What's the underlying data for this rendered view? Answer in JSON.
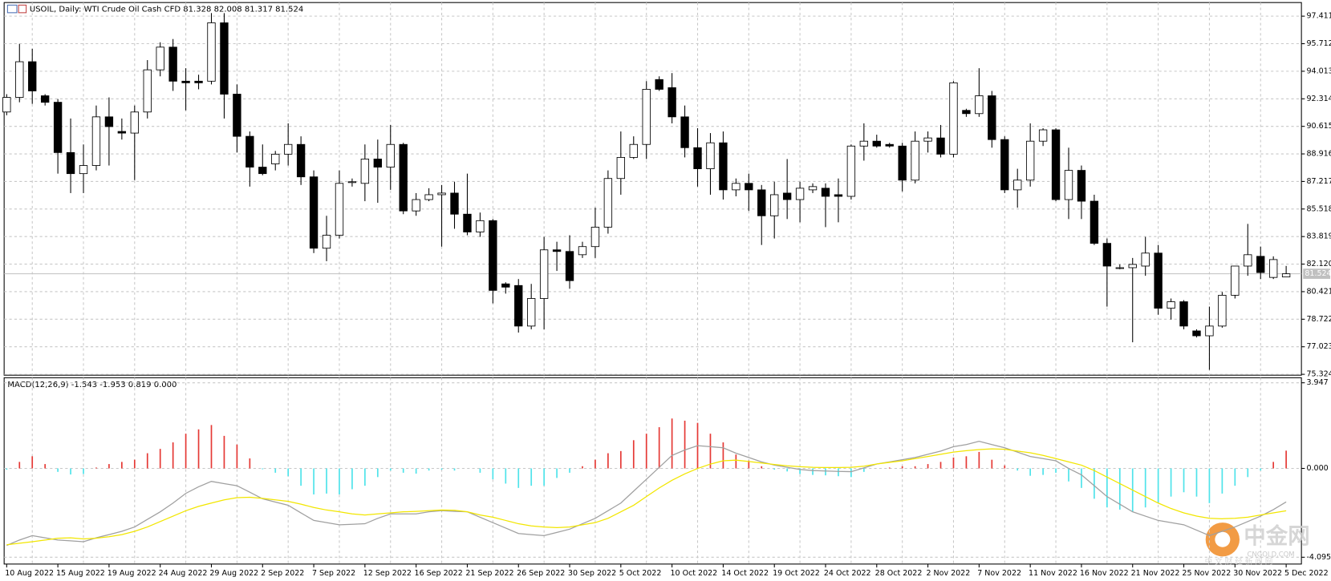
{
  "chart_data": [
    {
      "type": "candlestick",
      "title": "USOIL, Daily:  WTI Crude Oil Cash CFD  81.328 82.008 81.317 81.524",
      "categories": [
        "10 Aug 2022",
        null,
        null,
        null,
        "15 Aug 2022",
        null,
        null,
        null,
        "19 Aug 2022",
        null,
        null,
        null,
        "24 Aug 2022",
        null,
        null,
        null,
        "29 Aug 2022",
        null,
        null,
        null,
        "2 Sep 2022",
        null,
        null,
        null,
        "7 Sep 2022",
        null,
        null,
        null,
        "12 Sep 2022",
        null,
        null,
        null,
        "16 Sep 2022",
        null,
        null,
        null,
        "21 Sep 2022",
        null,
        null,
        null,
        "26 Sep 2022",
        null,
        null,
        null,
        "30 Sep 2022",
        null,
        null,
        null,
        "5 Oct 2022",
        null,
        null,
        null,
        "10 Oct 2022",
        null,
        null,
        null,
        "14 Oct 2022",
        null,
        null,
        null,
        "19 Oct 2022",
        null,
        null,
        null,
        "24 Oct 2022",
        null,
        null,
        null,
        "28 Oct 2022",
        null,
        null,
        null,
        "2 Nov 2022",
        null,
        null,
        null,
        "7 Nov 2022",
        null,
        null,
        null,
        "11 Nov 2022",
        null,
        null,
        null,
        "16 Nov 2022",
        null,
        null,
        null,
        "21 Nov 2022",
        null,
        null,
        null,
        "25 Nov 2022",
        null,
        null,
        null,
        "30 Nov 2022",
        null,
        null,
        null,
        "5 Dec 2022"
      ],
      "open": [
        91.5,
        92.4,
        94.6,
        92.5,
        92.1,
        89.0,
        87.7,
        88.2,
        91.2,
        90.3,
        90.2,
        91.5,
        94.1,
        95.5,
        93.4,
        93.4,
        93.4,
        97.0,
        92.6,
        90.0,
        88.1,
        88.3,
        88.9,
        89.5,
        87.5,
        83.1,
        83.9,
        87.2,
        87.1,
        88.6,
        88.1,
        89.5,
        85.4,
        86.1,
        86.4,
        86.5,
        85.2,
        84.1,
        84.8,
        80.9,
        80.8,
        78.3,
        80.0,
        83.0,
        82.9,
        82.7,
        83.2,
        84.4,
        87.4,
        88.7,
        89.5,
        93.5,
        93.0,
        91.2,
        89.3,
        88.0,
        89.6,
        86.7,
        87.1,
        86.7,
        85.1,
        86.5,
        86.1,
        86.7,
        86.8,
        86.4,
        86.3,
        89.4,
        89.7,
        89.5,
        89.4,
        87.3,
        89.7,
        89.9,
        88.9,
        91.6,
        91.4,
        92.5,
        89.8,
        86.7,
        87.3,
        89.7,
        90.4,
        86.1,
        87.9,
        86.0,
        83.4,
        81.9,
        81.9,
        82.0,
        82.8,
        79.4,
        79.8,
        78.0,
        77.7,
        78.3,
        80.2,
        82.0,
        82.6,
        81.3,
        81.328
      ],
      "high": [
        92.6,
        95.7,
        95.4,
        92.6,
        92.3,
        91.1,
        89.5,
        91.9,
        92.4,
        91.1,
        91.9,
        94.7,
        95.8,
        96.0,
        94.2,
        93.8,
        97.6,
        97.6,
        93.2,
        90.3,
        89.5,
        89.1,
        90.8,
        90.0,
        87.9,
        85.1,
        87.9,
        87.4,
        89.5,
        89.8,
        90.7,
        89.6,
        86.5,
        86.8,
        87.0,
        87.2,
        87.7,
        85.3,
        84.9,
        81.0,
        81.2,
        80.9,
        83.8,
        83.5,
        83.9,
        83.5,
        85.6,
        87.9,
        90.3,
        90.0,
        93.4,
        93.7,
        93.9,
        91.9,
        90.5,
        90.2,
        90.3,
        87.4,
        87.7,
        87.0,
        87.2,
        88.6,
        87.2,
        87.1,
        87.1,
        87.4,
        89.5,
        90.8,
        90.1,
        89.6,
        89.6,
        90.3,
        90.3,
        90.7,
        93.4,
        91.7,
        94.2,
        92.8,
        90.0,
        88.0,
        90.8,
        90.5,
        90.5,
        89.3,
        88.2,
        86.4,
        83.7,
        82.1,
        82.5,
        83.8,
        83.3,
        80.0,
        79.9,
        78.1,
        79.5,
        80.4,
        82.0,
        84.6,
        83.2,
        82.6,
        82.008
      ],
      "low": [
        91.3,
        92.1,
        92.0,
        91.9,
        87.7,
        86.5,
        86.5,
        87.9,
        88.2,
        89.8,
        87.3,
        91.1,
        93.7,
        92.8,
        91.6,
        92.9,
        93.2,
        91.1,
        89.0,
        86.9,
        87.6,
        87.9,
        88.2,
        87.0,
        82.8,
        82.3,
        83.7,
        86.9,
        86.0,
        85.9,
        86.7,
        85.2,
        85.1,
        86.0,
        83.2,
        84.3,
        83.9,
        83.8,
        79.7,
        80.3,
        77.9,
        78.1,
        78.1,
        81.7,
        80.6,
        82.5,
        82.5,
        84.0,
        86.4,
        88.6,
        88.6,
        92.8,
        90.8,
        88.7,
        86.9,
        86.4,
        86.1,
        86.3,
        85.4,
        83.3,
        83.7,
        84.9,
        84.7,
        86.5,
        84.4,
        84.7,
        86.1,
        88.5,
        89.3,
        89.3,
        86.6,
        87.1,
        89.0,
        88.7,
        88.7,
        91.2,
        91.2,
        89.3,
        86.5,
        85.6,
        86.9,
        89.4,
        86.0,
        84.9,
        84.9,
        83.3,
        79.5,
        81.8,
        77.3,
        81.4,
        79.0,
        78.7,
        78.1,
        77.6,
        75.6,
        78.2,
        80.0,
        81.4,
        81.2,
        81.2,
        81.317
      ],
      "close": [
        92.4,
        94.6,
        92.8,
        92.1,
        89.0,
        87.7,
        88.2,
        91.2,
        90.6,
        90.2,
        91.5,
        94.1,
        95.5,
        93.4,
        93.3,
        93.3,
        97.0,
        92.6,
        90.0,
        88.1,
        87.7,
        88.9,
        89.5,
        87.5,
        83.1,
        83.9,
        87.1,
        87.2,
        88.6,
        88.1,
        89.5,
        85.4,
        86.1,
        86.4,
        86.5,
        85.2,
        84.1,
        84.8,
        80.5,
        80.7,
        78.3,
        80.0,
        83.0,
        82.9,
        81.1,
        83.2,
        84.4,
        87.4,
        88.7,
        89.5,
        92.9,
        92.9,
        91.2,
        89.3,
        88.0,
        89.6,
        86.7,
        87.1,
        86.7,
        85.1,
        86.4,
        86.1,
        86.8,
        86.9,
        86.3,
        86.3,
        89.4,
        89.7,
        89.4,
        89.4,
        87.3,
        89.7,
        89.9,
        88.9,
        93.3,
        91.4,
        92.5,
        89.8,
        86.7,
        87.3,
        89.7,
        90.4,
        86.1,
        87.9,
        86.0,
        83.4,
        82.0,
        81.9,
        82.1,
        82.8,
        79.4,
        79.8,
        78.3,
        77.7,
        78.3,
        80.2,
        82.0,
        82.7,
        81.6,
        82.4,
        81.524
      ],
      "up_color": "#ffffff",
      "down_color": "#000000",
      "last_price": 81.524,
      "ylim": [
        75.27,
        98.25
      ],
      "yticks": [
        97.411,
        95.712,
        94.013,
        92.314,
        90.615,
        88.916,
        87.217,
        85.518,
        83.819,
        {
          "value": 82.12,
          "label": "82.120"
        },
        80.421,
        78.722,
        77.023,
        75.324
      ],
      "grid": true
    },
    {
      "type": "macd",
      "title": "MACD(12,26,9) -1.543 -1.953 0.819 0.000",
      "ylim": [
        -4.41,
        4.18
      ],
      "yticks": [
        3.947,
        {
          "value": 0,
          "label": "0.000"
        },
        -4.095
      ],
      "series": [
        {
          "kind": "histogram",
          "up_color": "#e53935",
          "down_color": "#4fe3ea",
          "values": [
            -0.06,
            0.3,
            0.56,
            0.2,
            -0.16,
            -0.28,
            -0.26,
            0.04,
            0.2,
            0.3,
            0.4,
            0.7,
            0.9,
            1.2,
            1.6,
            1.8,
            2.0,
            1.5,
            1.1,
            0.46,
            -0.04,
            -0.2,
            -0.36,
            -0.8,
            -1.2,
            -1.16,
            -1.2,
            -0.96,
            -0.8,
            -0.4,
            -0.1,
            -0.2,
            -0.24,
            -0.1,
            -0.06,
            -0.1,
            0.0,
            -0.2,
            -0.5,
            -0.7,
            -0.9,
            -0.8,
            -0.8,
            -0.44,
            -0.2,
            0.1,
            0.4,
            0.7,
            0.8,
            1.3,
            1.6,
            1.9,
            2.3,
            2.2,
            2.1,
            1.6,
            1.2,
            0.64,
            0.36,
            0.1,
            -0.06,
            -0.14,
            -0.26,
            -0.3,
            -0.32,
            -0.36,
            -0.4,
            -0.16,
            0.0,
            0.04,
            0.1,
            0.1,
            0.2,
            0.3,
            0.5,
            0.56,
            0.76,
            0.4,
            0.14,
            -0.1,
            -0.34,
            -0.3,
            -0.2,
            -0.6,
            -0.9,
            -1.4,
            -1.8,
            -1.9,
            -2.0,
            -1.8,
            -1.6,
            -1.3,
            -1.1,
            -1.3,
            -1.6,
            -1.16,
            -0.8,
            -0.4,
            -0.1,
            0.3,
            0.819
          ]
        },
        {
          "kind": "line",
          "color": "#a0a0a0",
          "values": [
            -3.55,
            -3.3,
            -3.1,
            -3.2,
            -3.3,
            -3.34,
            -3.38,
            -3.2,
            -3.05,
            -2.9,
            -2.7,
            -2.35,
            -2.0,
            -1.6,
            -1.15,
            -0.85,
            -0.6,
            -0.7,
            -0.8,
            -1.1,
            -1.4,
            -1.55,
            -1.7,
            -2.05,
            -2.4,
            -2.5,
            -2.6,
            -2.58,
            -2.55,
            -2.3,
            -2.1,
            -2.1,
            -2.1,
            -2.0,
            -1.95,
            -1.98,
            -2.0,
            -2.25,
            -2.5,
            -2.75,
            -3.0,
            -3.05,
            -3.1,
            -2.95,
            -2.8,
            -2.55,
            -2.3,
            -1.95,
            -1.6,
            -1.05,
            -0.5,
            0.05,
            0.6,
            0.85,
            1.05,
            1.0,
            0.95,
            0.7,
            0.5,
            0.3,
            0.15,
            0.05,
            -0.05,
            -0.1,
            -0.12,
            -0.14,
            -0.15,
            0.02,
            0.2,
            0.3,
            0.4,
            0.5,
            0.65,
            0.8,
            1.0,
            1.1,
            1.25,
            1.1,
            0.95,
            0.75,
            0.55,
            0.45,
            0.35,
            0.0,
            -0.3,
            -0.8,
            -1.3,
            -1.65,
            -2.0,
            -2.2,
            -2.4,
            -2.5,
            -2.6,
            -2.85,
            -3.1,
            -2.9,
            -2.7,
            -2.45,
            -2.2,
            -1.9,
            -1.543
          ]
        },
        {
          "kind": "line",
          "color": "#f2e600",
          "values": [
            -3.52,
            -3.45,
            -3.38,
            -3.3,
            -3.22,
            -3.2,
            -3.25,
            -3.22,
            -3.15,
            -3.05,
            -2.9,
            -2.7,
            -2.45,
            -2.2,
            -1.95,
            -1.75,
            -1.6,
            -1.45,
            -1.35,
            -1.33,
            -1.38,
            -1.45,
            -1.52,
            -1.65,
            -1.8,
            -1.92,
            -2.0,
            -2.1,
            -2.15,
            -2.1,
            -2.05,
            -2.0,
            -1.98,
            -1.95,
            -1.92,
            -1.93,
            -2.0,
            -2.15,
            -2.25,
            -2.4,
            -2.55,
            -2.65,
            -2.7,
            -2.73,
            -2.7,
            -2.6,
            -2.5,
            -2.3,
            -2.0,
            -1.7,
            -1.3,
            -0.9,
            -0.55,
            -0.25,
            0.0,
            0.2,
            0.35,
            0.38,
            0.32,
            0.25,
            0.18,
            0.12,
            0.08,
            0.05,
            0.04,
            0.04,
            0.05,
            0.1,
            0.2,
            0.28,
            0.35,
            0.45,
            0.55,
            0.65,
            0.75,
            0.82,
            0.87,
            0.9,
            0.88,
            0.8,
            0.72,
            0.6,
            0.45,
            0.3,
            0.15,
            -0.1,
            -0.4,
            -0.7,
            -1.0,
            -1.3,
            -1.6,
            -1.85,
            -2.05,
            -2.2,
            -2.3,
            -2.32,
            -2.3,
            -2.25,
            -2.15,
            -2.05,
            -1.953
          ]
        }
      ],
      "grid": true
    }
  ],
  "watermark": "中金网",
  "watermark_sub": "CNGOLD.COM",
  "watermark_line": "中 文 财 经 新 闻 网"
}
